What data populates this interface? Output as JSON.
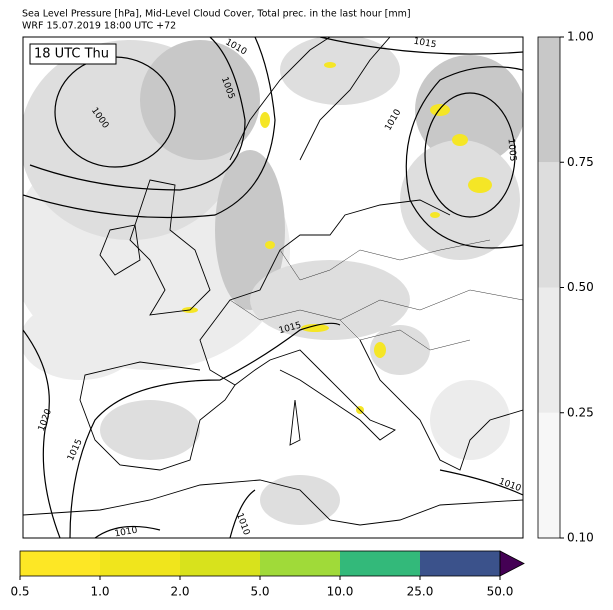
{
  "header": {
    "title": "Sea Level Pressure [hPa], Mid-Level Cloud Cover, Total prec. in the last hour [mm]",
    "subtitle": "WRF 15.07.2019 18:00 UTC +72"
  },
  "map": {
    "time_label": "18 UTC Thu",
    "isobar_labels": [
      1010,
      1005,
      1000,
      1015,
      1010,
      1005,
      1015,
      1020,
      1015,
      1010,
      1010,
      1010
    ]
  },
  "cloud_colorbar": {
    "ticks": [
      {
        "value": 0.1,
        "label": "0.10"
      },
      {
        "value": 0.25,
        "label": "0.25"
      },
      {
        "value": 0.5,
        "label": "0.50"
      },
      {
        "value": 0.75,
        "label": "0.75"
      },
      {
        "value": 1,
        "label": "1.00"
      }
    ],
    "colors": [
      "#f7f7f7",
      "#ebebeb",
      "#dddddd",
      "#c8c8c8"
    ]
  },
  "precip_colorbar": {
    "ticks": [
      0.5,
      {
        "value": 1,
        "label": "1.0"
      },
      {
        "value": 2,
        "label": "2.0"
      },
      {
        "value": 5,
        "label": "5.0"
      },
      {
        "value": 10,
        "label": "10.0"
      },
      {
        "value": 25,
        "label": "25.0"
      },
      {
        "value": 50,
        "label": "50.0"
      }
    ],
    "colors": [
      "#fde725",
      "#f0e51c",
      "#d8e21c",
      "#a0da39",
      "#33b97a",
      "#3b528b"
    ],
    "extend_color": "#440154"
  }
}
